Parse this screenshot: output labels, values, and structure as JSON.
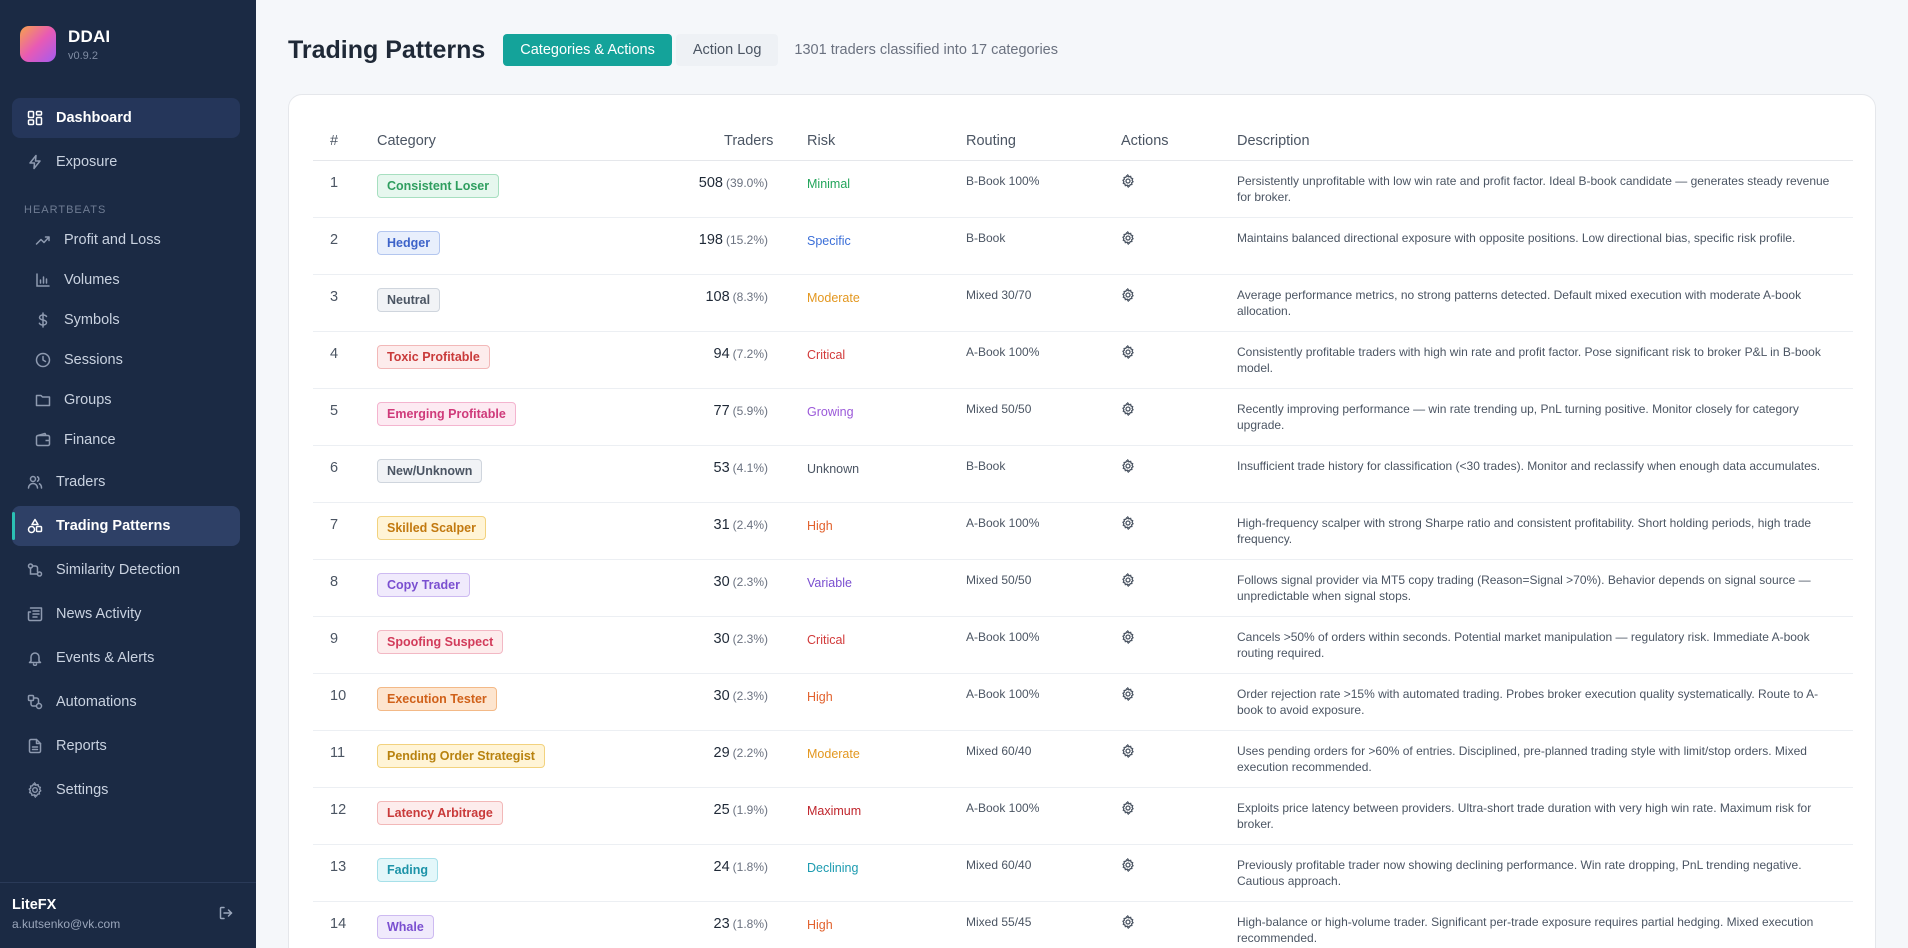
{
  "brand": {
    "name": "DDAI",
    "version": "v0.9.2"
  },
  "sidebar": {
    "top_items": [
      {
        "label": "Dashboard",
        "icon": "dashboard-icon"
      },
      {
        "label": "Exposure",
        "icon": "bolt-icon"
      }
    ],
    "section_label": "HEARTBEATS",
    "heartbeat_items": [
      {
        "label": "Profit and Loss",
        "icon": "trend-up-icon"
      },
      {
        "label": "Volumes",
        "icon": "bar-chart-icon"
      },
      {
        "label": "Symbols",
        "icon": "dollar-icon"
      },
      {
        "label": "Sessions",
        "icon": "clock-icon"
      },
      {
        "label": "Groups",
        "icon": "folder-icon"
      },
      {
        "label": "Finance",
        "icon": "wallet-icon"
      }
    ],
    "bottom_items": [
      {
        "label": "Traders",
        "icon": "users-icon"
      },
      {
        "label": "Trading Patterns",
        "icon": "shapes-icon"
      },
      {
        "label": "Similarity Detection",
        "icon": "link-icon"
      },
      {
        "label": "News Activity",
        "icon": "newspaper-icon"
      },
      {
        "label": "Events & Alerts",
        "icon": "bell-icon"
      },
      {
        "label": "Automations",
        "icon": "workflow-icon"
      },
      {
        "label": "Reports",
        "icon": "file-icon"
      },
      {
        "label": "Settings",
        "icon": "gear-icon"
      }
    ],
    "footer": {
      "org": "LiteFX",
      "email": "a.kutsenko@vk.com"
    }
  },
  "header": {
    "title": "Trading Patterns",
    "tabs": [
      "Categories & Actions",
      "Action Log"
    ],
    "subtitle": "1301 traders classified into 17 categories"
  },
  "table": {
    "columns": [
      "#",
      "Category",
      "Traders",
      "Risk",
      "Routing",
      "Actions",
      "Description"
    ],
    "rows": [
      {
        "num": "1",
        "category": "Consistent Loser",
        "traders": "508",
        "pct": "(39.0%)",
        "risk": "Minimal",
        "routing": "B-Book 100%",
        "description": "Persistently unprofitable with low win rate and profit factor. Ideal B-book candidate — generates steady revenue for broker.",
        "badge": {
          "bg": "#e6f7ee",
          "fg": "#2f9e5f",
          "border": "#a7dfc0"
        },
        "risk_color": "#22a55a"
      },
      {
        "num": "2",
        "category": "Hedger",
        "traders": "198",
        "pct": "(15.2%)",
        "risk": "Specific",
        "routing": "B-Book",
        "description": "Maintains balanced directional exposure with opposite positions. Low directional bias, specific risk profile.",
        "badge": {
          "bg": "#e8effc",
          "fg": "#3d63c9",
          "border": "#b3c6ef"
        },
        "risk_color": "#3b6fd8"
      },
      {
        "num": "3",
        "category": "Neutral",
        "traders": "108",
        "pct": "(8.3%)",
        "risk": "Moderate",
        "routing": "Mixed 30/70",
        "description": "Average performance metrics, no strong patterns detected. Default mixed execution with moderate A-book allocation.",
        "badge": {
          "bg": "#f1f3f6",
          "fg": "#4b5563",
          "border": "#cfd5dd"
        },
        "risk_color": "#e3971f"
      },
      {
        "num": "4",
        "category": "Toxic Profitable",
        "traders": "94",
        "pct": "(7.2%)",
        "risk": "Critical",
        "routing": "A-Book 100%",
        "description": "Consistently profitable traders with high win rate and profit factor. Pose significant risk to broker P&L in B-book model.",
        "badge": {
          "bg": "#fdecec",
          "fg": "#c93a3a",
          "border": "#f2b8b8"
        },
        "risk_color": "#d23b3b"
      },
      {
        "num": "5",
        "category": "Emerging Profitable",
        "traders": "77",
        "pct": "(5.9%)",
        "risk": "Growing",
        "routing": "Mixed 50/50",
        "description": "Recently improving performance — win rate trending up, PnL turning positive. Monitor closely for category upgrade.",
        "badge": {
          "bg": "#fdeaf2",
          "fg": "#cf3a7a",
          "border": "#f4b4cf"
        },
        "risk_color": "#9b59d9"
      },
      {
        "num": "6",
        "category": "New/Unknown",
        "traders": "53",
        "pct": "(4.1%)",
        "risk": "Unknown",
        "routing": "B-Book",
        "description": "Insufficient trade history for classification (<30 trades). Monitor and reclassify when enough data accumulates.",
        "badge": {
          "bg": "#f1f3f6",
          "fg": "#4b5563",
          "border": "#cfd5dd"
        },
        "risk_color": "#4b5563"
      },
      {
        "num": "7",
        "category": "Skilled Scalper",
        "traders": "31",
        "pct": "(2.4%)",
        "risk": "High",
        "routing": "A-Book 100%",
        "description": "High-frequency scalper with strong Sharpe ratio and consistent profitability. Short holding periods, high trade frequency.",
        "badge": {
          "bg": "#fff4d6",
          "fg": "#c2790f",
          "border": "#f2d27e"
        },
        "risk_color": "#e2622e"
      },
      {
        "num": "8",
        "category": "Copy Trader",
        "traders": "30",
        "pct": "(2.3%)",
        "risk": "Variable",
        "routing": "Mixed 50/50",
        "description": "Follows signal provider via MT5 copy trading (Reason=Signal >70%). Behavior depends on signal source — unpredictable when signal stops.",
        "badge": {
          "bg": "#f0eafc",
          "fg": "#7a4fd0",
          "border": "#cdbaf1"
        },
        "risk_color": "#7a4fd0"
      },
      {
        "num": "9",
        "category": "Spoofing Suspect",
        "traders": "30",
        "pct": "(2.3%)",
        "risk": "Critical",
        "routing": "A-Book 100%",
        "description": "Cancels >50% of orders within seconds. Potential market manipulation — regulatory risk. Immediate A-book routing required.",
        "badge": {
          "bg": "#fdecec",
          "fg": "#d23b5a",
          "border": "#f2b8c4"
        },
        "risk_color": "#d23b3b"
      },
      {
        "num": "10",
        "category": "Execution Tester",
        "traders": "30",
        "pct": "(2.3%)",
        "risk": "High",
        "routing": "A-Book 100%",
        "description": "Order rejection rate >15% with automated trading. Probes broker execution quality systematically. Route to A-book to avoid exposure.",
        "badge": {
          "bg": "#fde5cf",
          "fg": "#d0611a",
          "border": "#f3b987"
        },
        "risk_color": "#e2622e"
      },
      {
        "num": "11",
        "category": "Pending Order Strategist",
        "traders": "29",
        "pct": "(2.2%)",
        "risk": "Moderate",
        "routing": "Mixed 60/40",
        "description": "Uses pending orders for >60% of entries. Disciplined, pre-planned trading style with limit/stop orders. Mixed execution recommended.",
        "badge": {
          "bg": "#fff4d6",
          "fg": "#b8820f",
          "border": "#f2d27e"
        },
        "risk_color": "#e3971f"
      },
      {
        "num": "12",
        "category": "Latency Arbitrage",
        "traders": "25",
        "pct": "(1.9%)",
        "risk": "Maximum",
        "routing": "A-Book 100%",
        "description": "Exploits price latency between providers. Ultra-short trade duration with very high win rate. Maximum risk for broker.",
        "badge": {
          "bg": "#fdecec",
          "fg": "#c93a3a",
          "border": "#f2b8b8"
        },
        "risk_color": "#c0262d"
      },
      {
        "num": "13",
        "category": "Fading",
        "traders": "24",
        "pct": "(1.8%)",
        "risk": "Declining",
        "routing": "Mixed 60/40",
        "description": "Previously profitable trader now showing declining performance. Win rate dropping, PnL trending negative. Cautious approach.",
        "badge": {
          "bg": "#e3f7fa",
          "fg": "#1c93a8",
          "border": "#a7e0e9"
        },
        "risk_color": "#1c9bb0"
      },
      {
        "num": "14",
        "category": "Whale",
        "traders": "23",
        "pct": "(1.8%)",
        "risk": "High",
        "routing": "Mixed 55/45",
        "description": "High-balance or high-volume trader. Significant per-trade exposure requires partial hedging. Mixed execution recommended.",
        "badge": {
          "bg": "#f0eafc",
          "fg": "#7a4fd0",
          "border": "#cdbaf1"
        },
        "risk_color": "#e2622e"
      }
    ]
  }
}
